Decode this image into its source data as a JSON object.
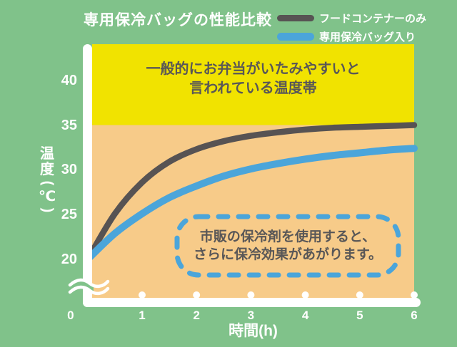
{
  "header": {
    "title": "専用保冷バッグの性能比較"
  },
  "legend": {
    "items": [
      {
        "label": "フードコンテナーのみ",
        "color": "#575353"
      },
      {
        "label": "専用保冷バッグ入り",
        "color": "#4ba5da"
      }
    ]
  },
  "colors": {
    "background_green": "#80c28a",
    "band_yellow": "#f1e300",
    "plot_orange": "#f7cb89",
    "line_gray": "#575353",
    "line_blue": "#4ba5da",
    "text_dark": "#595757",
    "text_light": "#ffffff",
    "axis_white": "#ffffff"
  },
  "chart_data": {
    "type": "line",
    "title": "専用保冷バッグの性能比較",
    "xlabel": "時間(h)",
    "ylabel": "温度(℃)",
    "x_ticks": [
      0,
      1,
      2,
      3,
      4,
      5,
      6
    ],
    "y_ticks": [
      20,
      25,
      30,
      35,
      40
    ],
    "xlim": [
      0,
      6
    ],
    "ylim": [
      20,
      44
    ],
    "y_axis_break_below": 20,
    "grid": false,
    "legend_position": "top-right",
    "x": [
      0,
      0.5,
      1,
      1.5,
      2,
      2.5,
      3,
      3.5,
      4,
      4.5,
      5,
      5.5,
      6
    ],
    "series": [
      {
        "name": "フードコンテナーのみ",
        "color": "#575353",
        "values": [
          20,
          25.1,
          28.6,
          30.9,
          32.3,
          33.2,
          33.8,
          34.2,
          34.5,
          34.7,
          34.8,
          34.9,
          35
        ]
      },
      {
        "name": "専用保冷バッグ入り",
        "color": "#4ba5da",
        "values": [
          20,
          22.9,
          25.1,
          26.9,
          28.2,
          29.3,
          30.1,
          30.7,
          31.2,
          31.6,
          31.9,
          32.2,
          32.4
        ]
      }
    ],
    "danger_band": {
      "from_temp": 35,
      "color": "#f1e300",
      "label_line1": "一般的にお弁当がいたみやすいと",
      "label_line2": "言われている温度帯"
    },
    "annotation": {
      "line1": "市販の保冷剤を使用すると、",
      "line2": "さらに保冷効果があがります。",
      "border_color": "#4ba5da"
    }
  }
}
